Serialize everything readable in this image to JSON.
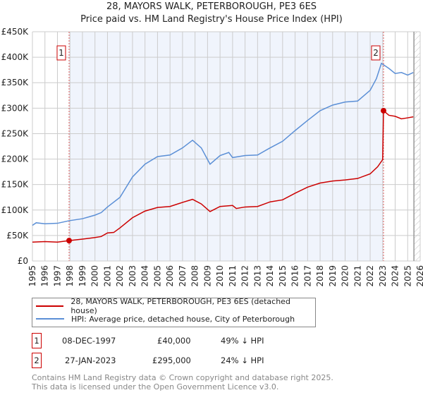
{
  "chart_data": {
    "type": "line",
    "title": "28, MAYORS WALK, PETERBOROUGH, PE3 6ES",
    "subtitle": "Price paid vs. HM Land Registry's House Price Index (HPI)",
    "xlim": [
      1995,
      2026
    ],
    "ylim": [
      0,
      450000
    ],
    "x_ticks": [
      "1995",
      "1996",
      "1997",
      "1998",
      "1999",
      "2000",
      "2001",
      "2002",
      "2003",
      "2004",
      "2005",
      "2006",
      "2007",
      "2008",
      "2009",
      "2010",
      "2011",
      "2012",
      "2013",
      "2014",
      "2015",
      "2016",
      "2017",
      "2018",
      "2019",
      "2020",
      "2021",
      "2022",
      "2023",
      "2024",
      "2025",
      "2026"
    ],
    "y_ticks": [
      {
        "v": 0,
        "label": "£0"
      },
      {
        "v": 50000,
        "label": "£50K"
      },
      {
        "v": 100000,
        "label": "£100K"
      },
      {
        "v": 150000,
        "label": "£150K"
      },
      {
        "v": 200000,
        "label": "£200K"
      },
      {
        "v": 250000,
        "label": "£250K"
      },
      {
        "v": 300000,
        "label": "£300K"
      },
      {
        "v": 350000,
        "label": "£350K"
      },
      {
        "v": 400000,
        "label": "£400K"
      },
      {
        "v": 450000,
        "label": "£450K"
      }
    ],
    "grid": true,
    "shaded_range": [
      1997.93,
      2023.07
    ],
    "forecast_hatch_from": 2025.5,
    "series": [
      {
        "name": "28, MAYORS WALK, PETERBOROUGH, PE3 6ES (detached house)",
        "color": "#cc0000",
        "x": [
          1995,
          1996,
          1997,
          1997.93,
          1999,
          2000,
          2000.5,
          2001,
          2001.5,
          2002,
          2003,
          2004,
          2005,
          2006,
          2007,
          2007.8,
          2008.5,
          2009.2,
          2010,
          2011,
          2011.3,
          2012,
          2013,
          2014,
          2015,
          2016,
          2017,
          2018,
          2019,
          2020,
          2021,
          2022,
          2022.6,
          2023.0,
          2023.07,
          2023.5,
          2024,
          2024.5,
          2025,
          2025.45
        ],
        "y": [
          37000,
          38000,
          37000,
          40000,
          43000,
          46000,
          48000,
          55000,
          56000,
          65000,
          85000,
          98000,
          105000,
          107000,
          115000,
          121000,
          112000,
          97000,
          107000,
          109000,
          103000,
          106000,
          107000,
          116000,
          120000,
          133000,
          145000,
          153000,
          157000,
          159000,
          162000,
          171000,
          185000,
          199000,
          295000,
          286000,
          284000,
          279000,
          281000,
          283000
        ]
      },
      {
        "name": "HPI: Average price, detached house, City of Peterborough",
        "color": "#5b8fd6",
        "x": [
          1995,
          1995.3,
          1996,
          1997,
          1997.93,
          1999,
          2000,
          2000.5,
          2001,
          2002,
          2003,
          2004,
          2005,
          2006,
          2007,
          2007.8,
          2008.5,
          2009.2,
          2010,
          2010.7,
          2011,
          2012,
          2013,
          2014,
          2015,
          2016,
          2017,
          2018,
          2019,
          2020,
          2021,
          2022,
          2022.5,
          2022.9,
          2023.5,
          2024,
          2024.5,
          2025,
          2025.45
        ],
        "y": [
          70000,
          75000,
          73000,
          74000,
          79000,
          83000,
          90000,
          95000,
          106000,
          125000,
          165000,
          190000,
          205000,
          208000,
          222000,
          237000,
          222000,
          190000,
          207000,
          213000,
          203000,
          207000,
          208000,
          222000,
          235000,
          256000,
          276000,
          295000,
          306000,
          312000,
          314000,
          335000,
          358000,
          388000,
          378000,
          368000,
          370000,
          365000,
          370000
        ]
      }
    ],
    "sales": [
      {
        "label": "1",
        "x": 1997.93,
        "y": 40000,
        "date": "08-DEC-1997",
        "price": "£40,000",
        "hpi": "49% ↓ HPI"
      },
      {
        "label": "2",
        "x": 2023.07,
        "y": 295000,
        "date": "27-JAN-2023",
        "price": "£295,000",
        "hpi": "24% ↓ HPI"
      }
    ]
  },
  "footer": {
    "line1": "Contains HM Land Registry data © Crown copyright and database right 2025.",
    "line2": "This data is licensed under the Open Government Licence v3.0."
  }
}
